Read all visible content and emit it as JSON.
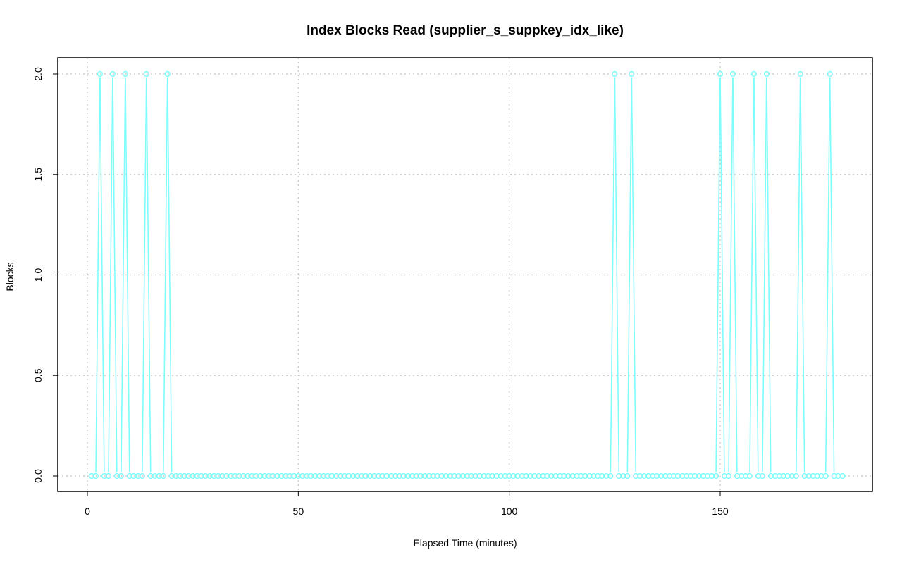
{
  "chart_data": {
    "type": "line",
    "title": "Index Blocks Read (supplier_s_suppkey_idx_like)",
    "xlabel": "Elapsed Time (minutes)",
    "ylabel": "Blocks",
    "xlim": [
      0,
      180
    ],
    "ylim": [
      0,
      2
    ],
    "x_ticks": [
      0,
      50,
      100,
      150
    ],
    "x_tick_labels": [
      "0",
      "50",
      "100",
      "150"
    ],
    "y_ticks": [
      0,
      0.5,
      1,
      1.5,
      2
    ],
    "y_tick_labels": [
      "0.0",
      "0.5",
      "1.0",
      "1.5",
      "2.0"
    ],
    "grid": true,
    "series_color": "#7ffcfc",
    "marker": "open-circle",
    "x_start": 1,
    "x_end": 179,
    "spike_x": [
      3,
      6,
      9,
      14,
      19,
      125,
      129,
      150,
      153,
      158,
      161,
      169,
      176
    ],
    "spike_value": 2,
    "baseline_value": 0
  }
}
